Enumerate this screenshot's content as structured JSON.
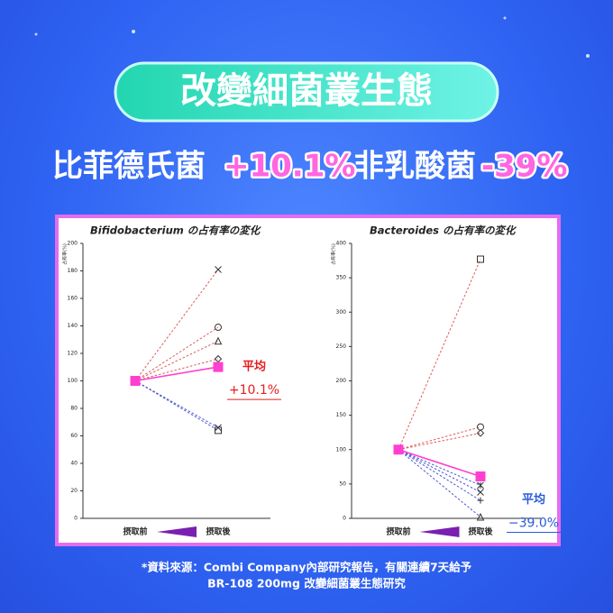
{
  "header": {
    "title": "改變細菌叢生態"
  },
  "subtitle": [
    "比菲德氏菌",
    "+10.1%",
    "非乳酸菌",
    "-39%"
  ],
  "chart_data": [
    {
      "type": "line",
      "title": "Bifidobacterium の占有率の変化",
      "y_label": "占有率(%)",
      "categories": [
        "摂取前",
        "摂取後"
      ],
      "ylim": [
        0,
        200
      ],
      "yticks": [
        0,
        20,
        40,
        60,
        80,
        100,
        120,
        140,
        160,
        180,
        200
      ],
      "series": [
        {
          "values": [
            100,
            181
          ],
          "marker": "x",
          "color": "#e05a5a"
        },
        {
          "values": [
            100,
            139
          ],
          "marker": "circle",
          "color": "#e05a5a"
        },
        {
          "values": [
            100,
            129
          ],
          "marker": "triangle",
          "color": "#e05a5a"
        },
        {
          "values": [
            100,
            116
          ],
          "marker": "diamond",
          "color": "#e05a5a"
        },
        {
          "values": [
            100,
            66
          ],
          "marker": "x",
          "color": "#4a55d0"
        },
        {
          "values": [
            100,
            64
          ],
          "marker": "square",
          "color": "#4a55d0"
        },
        {
          "values": [
            100,
            110.1
          ],
          "marker": "square-filled",
          "color": "#ff3fd0"
        }
      ],
      "annotations": [
        "平均",
        "+10.1%"
      ],
      "annotation_color": "#e81c1c"
    },
    {
      "type": "line",
      "title": "Bacteroides の占有率の変化",
      "y_label": "占有率(%)",
      "categories": [
        "摂取前",
        "摂取後"
      ],
      "ylim": [
        0,
        400
      ],
      "yticks": [
        0,
        50,
        100,
        150,
        200,
        250,
        300,
        350,
        400
      ],
      "series": [
        {
          "values": [
            100,
            377
          ],
          "marker": "square",
          "color": "#e05a5a"
        },
        {
          "values": [
            100,
            133
          ],
          "marker": "circle",
          "color": "#e05a5a"
        },
        {
          "values": [
            100,
            124
          ],
          "marker": "diamond",
          "color": "#e05a5a"
        },
        {
          "values": [
            100,
            48
          ],
          "marker": "star",
          "color": "#4a55d0"
        },
        {
          "values": [
            100,
            38
          ],
          "marker": "x",
          "color": "#4a55d0"
        },
        {
          "values": [
            100,
            26
          ],
          "marker": "plus",
          "color": "#4a55d0"
        },
        {
          "values": [
            100,
            2
          ],
          "marker": "triangle",
          "color": "#4a55d0"
        },
        {
          "values": [
            100,
            61
          ],
          "marker": "square-filled",
          "color": "#ff3fd0"
        }
      ],
      "annotations": [
        "平均",
        "−39.0%"
      ],
      "annotation_color": "#2a5ad8"
    }
  ],
  "footnote": [
    "*資料來源：Combi Company內部研究報告，有關連續7天給予",
    "BR-108 200mg 改變細菌叢生態研究"
  ]
}
